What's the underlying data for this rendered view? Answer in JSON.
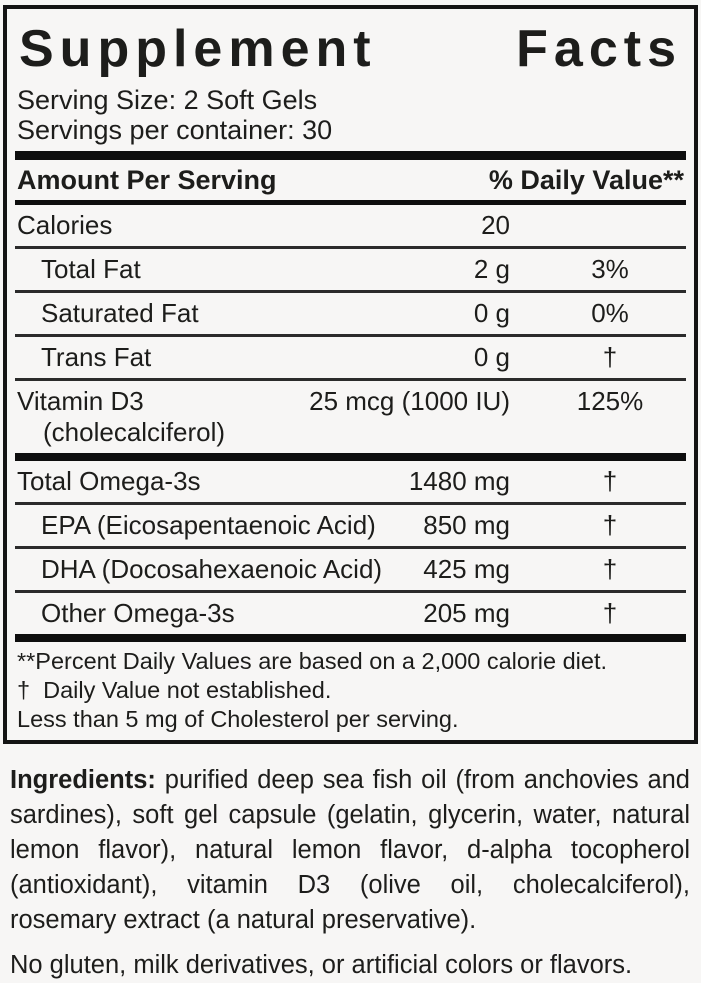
{
  "panel": {
    "title_words": [
      "Supplement",
      "Facts"
    ],
    "serving_size": "Serving Size: 2 Soft Gels",
    "servings_per_container": "Servings per container: 30",
    "header": {
      "amount_label": "Amount Per Serving",
      "dv_label": "% Daily Value**"
    },
    "rows": [
      {
        "label": "Calories",
        "amount": "20",
        "dv": "",
        "indent": false,
        "sep_after": "hairline"
      },
      {
        "label": "Total Fat",
        "amount": "2 g",
        "dv": "3%",
        "indent": true,
        "sep_after": "hairline"
      },
      {
        "label": "Saturated Fat",
        "amount": "0 g",
        "dv": "0%",
        "indent": true,
        "sep_after": "hairline"
      },
      {
        "label": "Trans Fat",
        "amount": "0 g",
        "dv": "†",
        "indent": true,
        "sep_after": "hairline"
      },
      {
        "label": "Vitamin D3",
        "label2": "(cholecalciferol)",
        "amount": "25 mcg (1000 IU)",
        "dv": "125%",
        "indent": false,
        "sep_after": "thick"
      },
      {
        "label": "Total Omega-3s",
        "amount": "1480 mg",
        "dv": "†",
        "indent": false,
        "sep_after": "hairline"
      },
      {
        "label": "EPA (Eicosapentaenoic Acid)",
        "amount": "850 mg",
        "dv": "†",
        "indent": true,
        "sep_after": "hairline"
      },
      {
        "label": "DHA (Docosahexaenoic Acid)",
        "amount": "425 mg",
        "dv": "†",
        "indent": true,
        "sep_after": "hairline"
      },
      {
        "label": "Other Omega-3s",
        "amount": "205 mg",
        "dv": "†",
        "indent": true,
        "sep_after": "thick"
      }
    ],
    "footnotes": [
      "**Percent Daily Values are based on a 2,000 calorie diet.",
      "†  Daily Value not established.",
      "Less than 5 mg of Cholesterol per serving."
    ]
  },
  "ingredients": {
    "label": "Ingredients:",
    "text": "purified deep sea fish oil (from anchovies and sardines), soft gel capsule (gelatin, glycerin, water, natural lemon flavor), natural lemon flavor, d-alpha tocopherol (antioxidant), vitamin D3 (olive oil, cholecalciferol), rosemary extract (a natural preservative).",
    "allergen_note": "No gluten, milk derivatives, or artificial colors or flavors."
  },
  "colors": {
    "text": "#1d1d1b",
    "background": "#f7f6f5",
    "bar": "#0e0e0e"
  }
}
